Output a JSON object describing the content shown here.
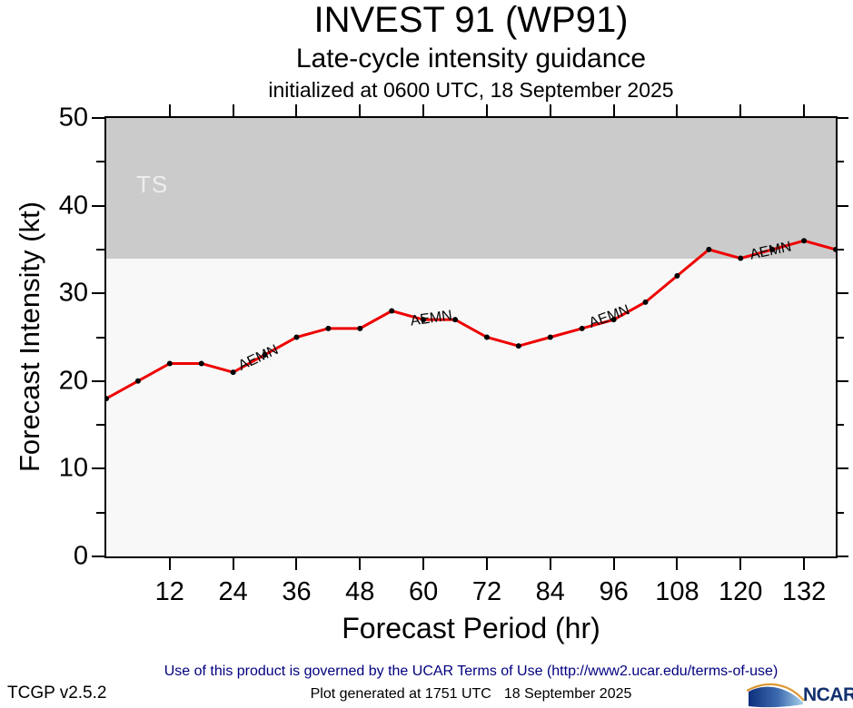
{
  "chart_data": {
    "type": "line",
    "title": "INVEST 91 (WP91)",
    "subtitle": "Late-cycle intensity guidance",
    "init_line": "initialized at 0600 UTC, 18 September 2025",
    "xlabel": "Forecast Period (hr)",
    "ylabel": "Forecast Intensity (kt)",
    "xlim": [
      0,
      138
    ],
    "ylim": [
      0,
      50
    ],
    "x_ticks": [
      12,
      24,
      36,
      48,
      60,
      72,
      84,
      96,
      108,
      120,
      132
    ],
    "y_major_ticks": [
      0,
      10,
      20,
      30,
      40,
      50
    ],
    "y_minor_ticks": [
      5,
      15,
      25,
      35,
      45
    ],
    "grid": false,
    "legend_position": "none",
    "threshold_band": {
      "label": "TS",
      "from": 34,
      "to": 50,
      "color": "#cbcbcb",
      "label_color": "#eeeeee"
    },
    "plot_background": "#f8f8f8",
    "series": [
      {
        "name": "AEMN",
        "color": "#ee0000",
        "marker_color": "#000000",
        "x": [
          0,
          6,
          12,
          18,
          24,
          30,
          36,
          42,
          48,
          54,
          60,
          66,
          72,
          78,
          84,
          90,
          96,
          102,
          108,
          114,
          120,
          126,
          132,
          138
        ],
        "values": [
          18,
          20,
          22,
          22,
          21,
          23,
          25,
          26,
          26,
          28,
          27,
          27,
          25,
          24,
          25,
          26,
          27,
          29,
          32,
          35,
          34,
          35,
          36,
          35
        ]
      }
    ],
    "series_labels": [
      {
        "text": "AEMN",
        "hour": 28.8,
        "kt": 22.6,
        "angle": -25
      },
      {
        "text": "AEMN",
        "hour": 61.5,
        "kt": 27.1,
        "angle": -8
      },
      {
        "text": "AEMN",
        "hour": 95.2,
        "kt": 27.3,
        "angle": -20
      },
      {
        "text": "AEMN",
        "hour": 125.7,
        "kt": 34.8,
        "angle": -12
      }
    ]
  },
  "footer": {
    "terms": "Use of this product is governed by the UCAR Terms of Use (http://www2.ucar.edu/terms-of-use)",
    "version": "TCGP v2.5.2",
    "generated_line_1": "Plot generated at 1751 UTC",
    "generated_line_2": "18 September 2025",
    "ncar_logo_text": "NCAR"
  }
}
